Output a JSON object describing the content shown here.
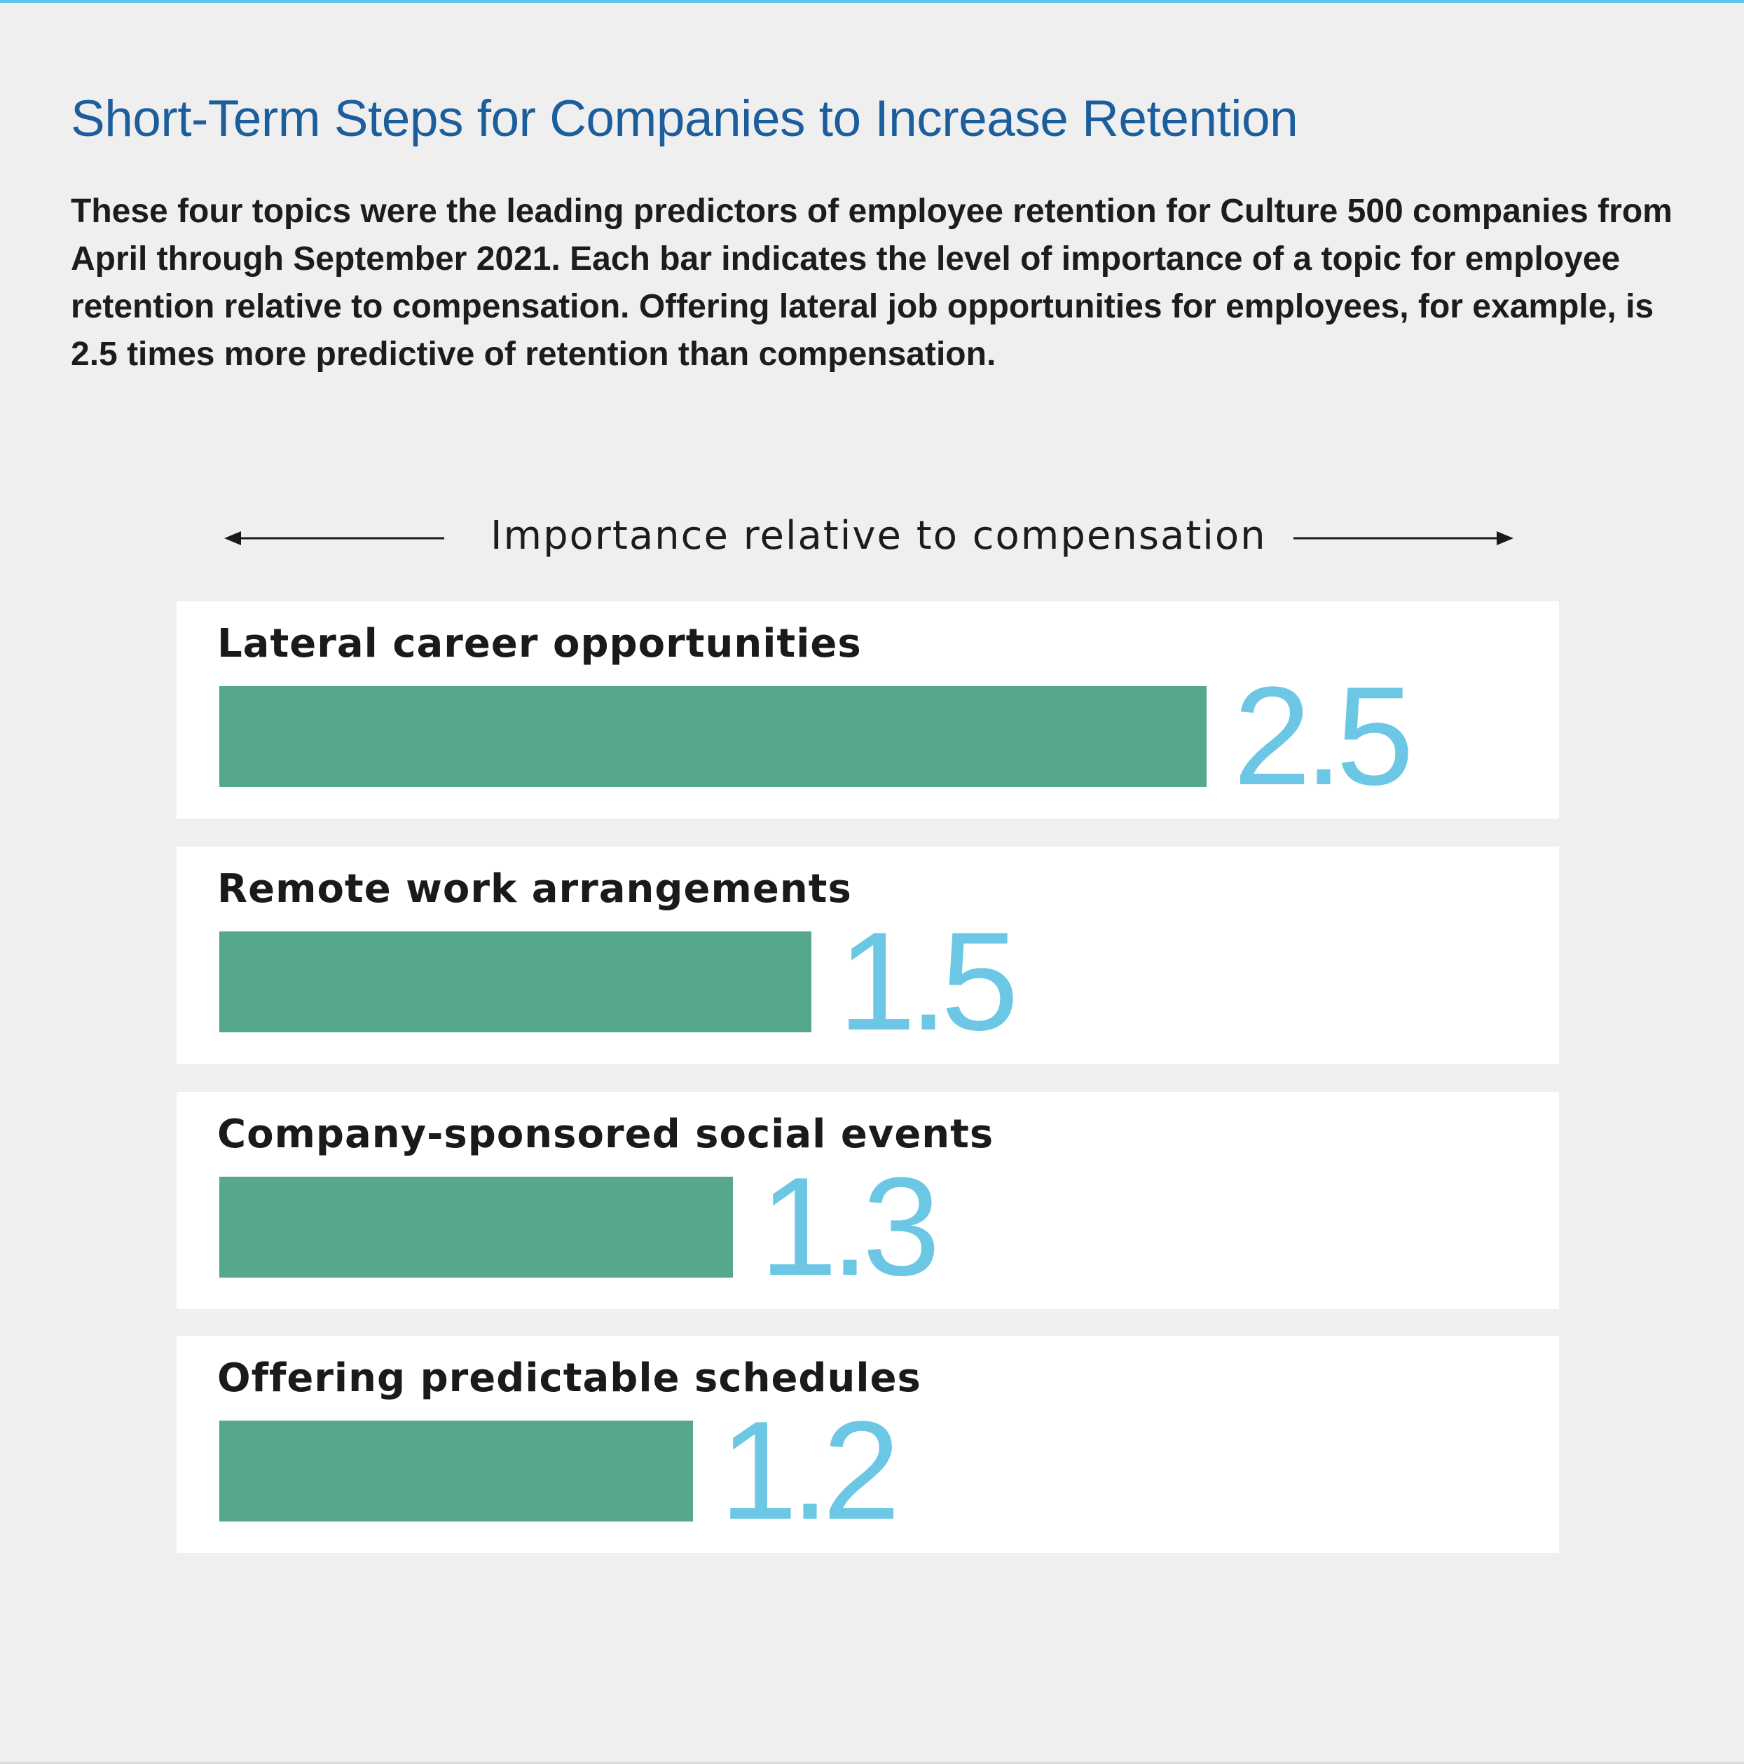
{
  "header": {
    "title": "Short-Term Steps for Companies to Increase Retention",
    "description": "These four topics were the leading predictors of employee retention for Culture 500 companies from April through September 2021. Each bar indicates the level of importance of a topic for employee retention relative to compensation. Offering lateral job opportunities for employees, for example, is 2.5 times more predictive of retention than compensation."
  },
  "colors": {
    "title": "#1c5e9c",
    "bar": "#55a88d",
    "value": "#6cc7e5",
    "card": "#ffffff",
    "background": "#efefef",
    "accent_rule": "#5bc8e8"
  },
  "chart_data": {
    "type": "bar",
    "orientation": "horizontal",
    "axis_caption": "Importance relative to compensation",
    "categories": [
      "Lateral career opportunities",
      "Remote work arrangements",
      "Company-sponsored social events",
      "Offering predictable schedules"
    ],
    "values": [
      2.5,
      1.5,
      1.3,
      1.2
    ],
    "value_labels": [
      "2.5",
      "1.5",
      "1.3",
      "1.2"
    ],
    "xlim": [
      0,
      2.5
    ],
    "grid": false,
    "legend": "none"
  }
}
